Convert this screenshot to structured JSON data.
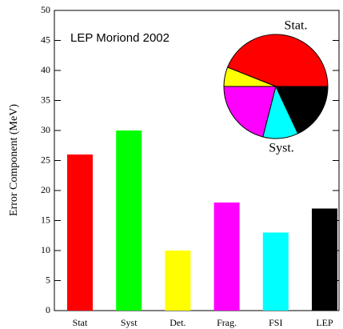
{
  "chart_data": {
    "type": "bar",
    "ylabel": "Error Component (MeV)",
    "annotation": "LEP Moriond 2002",
    "categories": [
      "Stat",
      "Syst",
      "Det.",
      "Frag.",
      "FSI",
      "LEP"
    ],
    "values": [
      26,
      30,
      10,
      18,
      13,
      17
    ],
    "colors": [
      "#ff0000",
      "#00ff00",
      "#ffff00",
      "#ff00ff",
      "#00ffff",
      "#000000"
    ],
    "ylim": [
      0,
      50
    ],
    "yticks": [
      0,
      5,
      10,
      15,
      20,
      25,
      30,
      35,
      40,
      45,
      50
    ],
    "inset": {
      "type": "pie",
      "labels": [
        "Stat.",
        "Syst."
      ],
      "values": [
        44,
        6,
        21,
        11,
        18
      ],
      "colors": [
        "#ff0000",
        "#ffff00",
        "#ff00ff",
        "#00ffff",
        "#000000"
      ]
    }
  }
}
